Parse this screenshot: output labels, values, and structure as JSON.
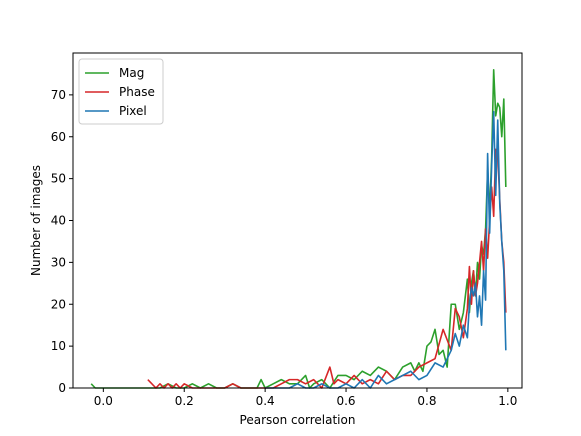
{
  "chart_data": {
    "type": "line",
    "xlabel": "Pearson correlation",
    "ylabel": "Number of images",
    "xlim": [
      -0.075,
      1.035
    ],
    "ylim": [
      0,
      80
    ],
    "xticks": [
      0.0,
      0.2,
      0.4,
      0.6,
      0.8,
      1.0
    ],
    "xtick_labels": [
      "0.0",
      "0.2",
      "0.4",
      "0.6",
      "0.8",
      "1.0"
    ],
    "yticks": [
      0,
      10,
      20,
      30,
      40,
      50,
      60,
      70
    ],
    "ytick_labels": [
      "0",
      "10",
      "20",
      "30",
      "40",
      "50",
      "60",
      "70"
    ],
    "grid": false,
    "legend": "top-left",
    "series": [
      {
        "name": "Mag",
        "color": "#2ca02c",
        "x": [
          -0.03,
          -0.02,
          0.0,
          0.1,
          0.12,
          0.14,
          0.16,
          0.18,
          0.2,
          0.22,
          0.24,
          0.26,
          0.28,
          0.3,
          0.32,
          0.34,
          0.36,
          0.38,
          0.39,
          0.4,
          0.42,
          0.44,
          0.46,
          0.48,
          0.5,
          0.51,
          0.52,
          0.54,
          0.56,
          0.58,
          0.6,
          0.62,
          0.64,
          0.66,
          0.68,
          0.7,
          0.72,
          0.74,
          0.76,
          0.77,
          0.78,
          0.79,
          0.8,
          0.81,
          0.82,
          0.83,
          0.84,
          0.85,
          0.86,
          0.87,
          0.88,
          0.89,
          0.9,
          0.905,
          0.91,
          0.915,
          0.92,
          0.925,
          0.93,
          0.935,
          0.94,
          0.945,
          0.95,
          0.955,
          0.96,
          0.965,
          0.97,
          0.975,
          0.98,
          0.985,
          0.99,
          0.995
        ],
        "y": [
          1,
          0,
          0,
          0,
          0,
          0,
          1,
          0,
          0,
          1,
          0,
          1,
          0,
          0,
          1,
          0,
          0,
          0,
          2,
          0,
          1,
          2,
          1,
          1,
          3,
          0,
          1,
          2,
          0,
          3,
          3,
          2,
          4,
          3,
          5,
          4,
          2,
          5,
          6,
          4,
          6,
          4,
          10,
          11,
          14,
          8,
          9,
          5,
          20,
          20,
          14,
          18,
          26,
          18,
          25,
          28,
          22,
          30,
          26,
          34,
          32,
          38,
          52,
          42,
          55,
          76,
          65,
          68,
          67,
          60,
          69,
          48
        ]
      },
      {
        "name": "Phase",
        "color": "#d62728",
        "x": [
          0.11,
          0.13,
          0.14,
          0.15,
          0.16,
          0.17,
          0.18,
          0.19,
          0.2,
          0.22,
          0.24,
          0.26,
          0.28,
          0.3,
          0.32,
          0.34,
          0.36,
          0.38,
          0.4,
          0.42,
          0.44,
          0.46,
          0.48,
          0.5,
          0.52,
          0.54,
          0.56,
          0.57,
          0.58,
          0.6,
          0.62,
          0.64,
          0.66,
          0.68,
          0.7,
          0.72,
          0.74,
          0.76,
          0.78,
          0.8,
          0.82,
          0.84,
          0.86,
          0.87,
          0.88,
          0.89,
          0.9,
          0.905,
          0.91,
          0.915,
          0.92,
          0.925,
          0.93,
          0.935,
          0.94,
          0.945,
          0.95,
          0.955,
          0.96,
          0.965,
          0.97,
          0.975,
          0.98,
          0.985,
          0.99,
          0.995
        ],
        "y": [
          2,
          0,
          1,
          0,
          1,
          0,
          1,
          0,
          1,
          0,
          0,
          0,
          0,
          0,
          1,
          0,
          0,
          0,
          0,
          0,
          1,
          2,
          2,
          1,
          2,
          0,
          5,
          1,
          2,
          1,
          3,
          1,
          2,
          1,
          4,
          2,
          3,
          3,
          5,
          6,
          7,
          14,
          9,
          19,
          17,
          12,
          19,
          29,
          20,
          28,
          22,
          25,
          30,
          35,
          28,
          38,
          31,
          40,
          48,
          41,
          57,
          56,
          45,
          35,
          30,
          18
        ]
      },
      {
        "name": "Pixel",
        "color": "#1f77b4",
        "x": [
          0.4,
          0.42,
          0.44,
          0.46,
          0.48,
          0.5,
          0.52,
          0.54,
          0.56,
          0.58,
          0.6,
          0.62,
          0.64,
          0.66,
          0.68,
          0.7,
          0.72,
          0.74,
          0.76,
          0.78,
          0.8,
          0.82,
          0.84,
          0.85,
          0.86,
          0.87,
          0.88,
          0.89,
          0.9,
          0.905,
          0.91,
          0.915,
          0.92,
          0.925,
          0.93,
          0.935,
          0.94,
          0.945,
          0.95,
          0.955,
          0.96,
          0.965,
          0.97,
          0.975,
          0.98,
          0.985,
          0.99,
          0.995
        ],
        "y": [
          0,
          0,
          0,
          0,
          1,
          0,
          0,
          1,
          0,
          0,
          1,
          0,
          2,
          0,
          3,
          1,
          2,
          3,
          4,
          2,
          3,
          6,
          5,
          7,
          9,
          13,
          10,
          15,
          12,
          20,
          24,
          22,
          25,
          17,
          22,
          15,
          28,
          21,
          56,
          37,
          53,
          66,
          46,
          64,
          44,
          35,
          28,
          9
        ]
      }
    ]
  }
}
